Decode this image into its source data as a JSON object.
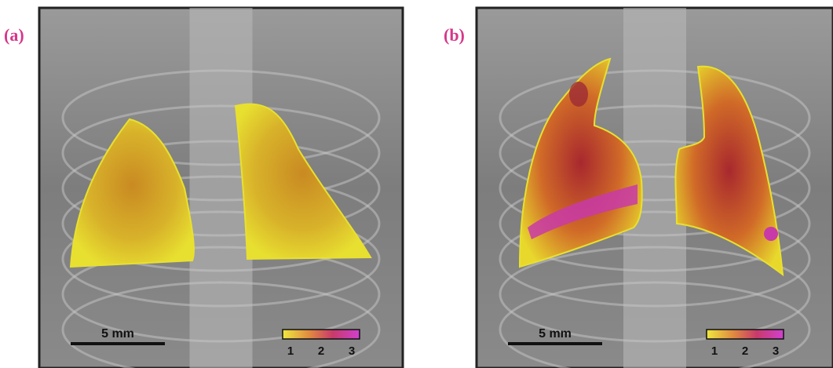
{
  "panels": [
    {
      "label": "(a)",
      "scale_bar": "5 mm",
      "colorbar_ticks": [
        1,
        2,
        3
      ]
    },
    {
      "label": "(b)",
      "scale_bar": "5 mm",
      "colorbar_ticks": [
        1,
        2,
        3
      ]
    }
  ]
}
